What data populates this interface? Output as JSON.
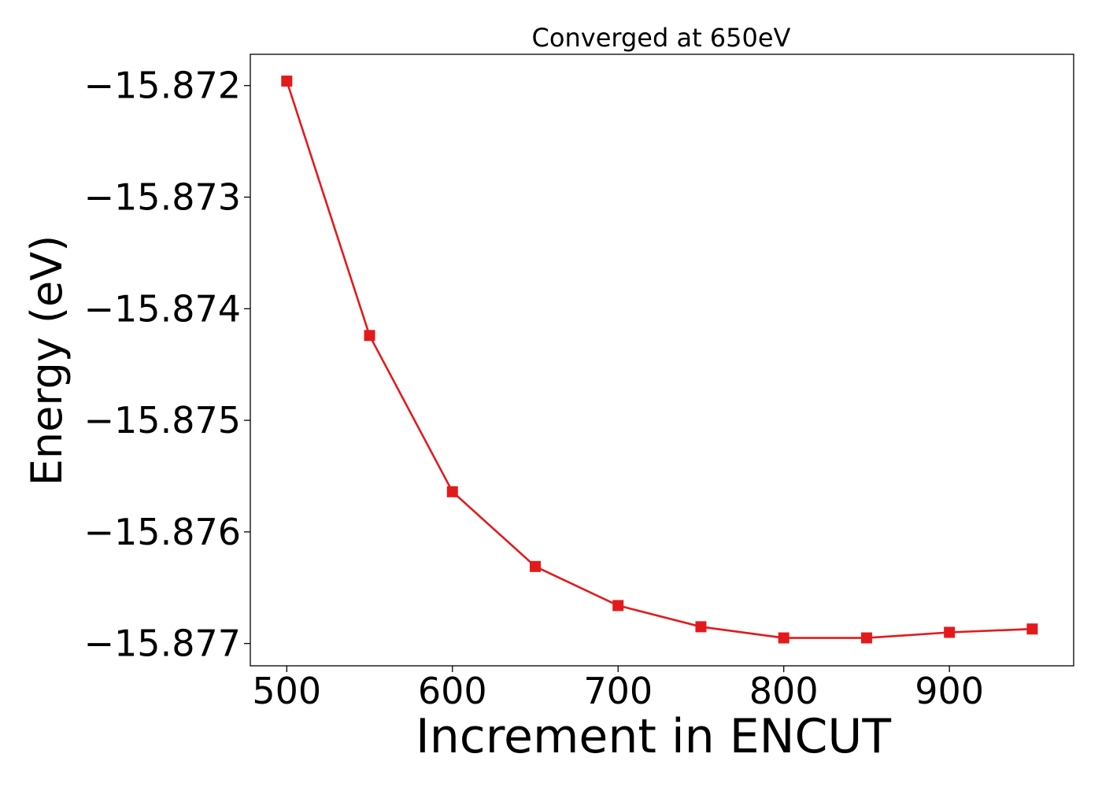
{
  "chart_data": {
    "type": "line",
    "title": "Converged at 650eV",
    "xlabel": "Increment in ENCUT",
    "ylabel": "Energy (eV)",
    "xlim": [
      478,
      975
    ],
    "ylim": [
      -15.8772,
      -15.87172
    ],
    "xticks": [
      500,
      600,
      700,
      800,
      900
    ],
    "xtick_labels": [
      "500",
      "600",
      "700",
      "800",
      "900"
    ],
    "yticks": [
      -15.872,
      -15.873,
      -15.874,
      -15.875,
      -15.876,
      -15.877
    ],
    "ytick_labels": [
      "−15.872",
      "−15.873",
      "−15.874",
      "−15.875",
      "−15.876",
      "−15.877"
    ],
    "grid": false,
    "color": "#e31a1c",
    "marker": "square",
    "series": [
      {
        "x": [
          500,
          550,
          600,
          650,
          700,
          750,
          800,
          850,
          900,
          950
        ],
        "y": [
          -15.87196,
          -15.87424,
          -15.87564,
          -15.87631,
          -15.87666,
          -15.87685,
          -15.87695,
          -15.87695,
          -15.8769,
          -15.87687
        ]
      }
    ]
  }
}
